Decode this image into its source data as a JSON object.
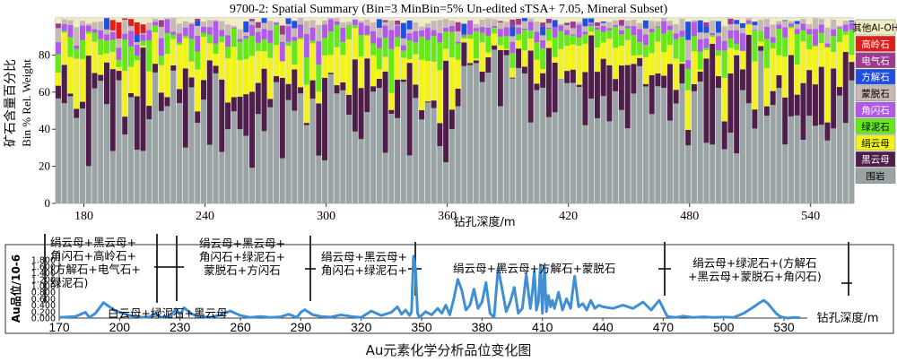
{
  "top_chart_data": {
    "type": "bar",
    "stacked": true,
    "title": "9700-2: Spatial Summary (Bin=3 MinBin=5% Un-edited sTSA+ 7.05, Mineral Subset)",
    "ylabel_cn": "矿石含量百分比",
    "ylabel_en": "Bin % Rel. Weight",
    "xlabel": "钻孔深度/m",
    "xlim": [
      166,
      561
    ],
    "ylim": [
      0,
      100
    ],
    "x_ticks": [
      180,
      240,
      300,
      360,
      420,
      480,
      540
    ],
    "y_ticks": [
      0,
      20,
      40,
      60,
      80
    ],
    "legend": [
      {
        "name": "其他Al-OH",
        "color": "#f2edc0"
      },
      {
        "name": "高岭石",
        "color": "#e21b1b"
      },
      {
        "name": "电气石",
        "color": "#9d3b8f"
      },
      {
        "name": "方解石",
        "color": "#1f4fe0"
      },
      {
        "name": "蒙脱石",
        "color": "#c8b8b4"
      },
      {
        "name": "角闪石",
        "color": "#b15ae8"
      },
      {
        "name": "绿泥石",
        "color": "#66e81a"
      },
      {
        "name": "绢云母",
        "color": "#f2f21d"
      },
      {
        "name": "黑云母",
        "color": "#4e1d4a"
      },
      {
        "name": "围岩",
        "color": "#9aa4a4"
      }
    ]
  },
  "zones": [
    {
      "lines": [
        "绢云母+黑云母+",
        "角闪石+高岭石+",
        "(方解石+电气石+",
        "绿泥石)"
      ]
    },
    {
      "lines": [
        "绢云母+黑云母+",
        "角闪石+绿泥石+",
        "蒙脱石+方闪石"
      ]
    },
    {
      "lines": [
        "绢云母+黑云母+",
        "角闪石+绿泥石+"
      ]
    },
    {
      "lines": [
        "绢云母+黑云母+方解石+蒙脱石"
      ]
    },
    {
      "lines": [
        "绢云母+绿泥石+(方解石",
        "+黑云母+蒙脱石+角闪石)"
      ]
    }
  ],
  "zone_note": "白云母+绿泥石+黑云母",
  "chart_data": {
    "type": "line",
    "ylabel": "Au品位/10-6",
    "xlabel": "钻孔深度/m",
    "xlim": [
      170,
      538
    ],
    "ylim": [
      0,
      2.0
    ],
    "x_ticks": [
      170,
      200,
      230,
      260,
      290,
      320,
      350,
      380,
      410,
      440,
      470,
      500,
      530
    ],
    "y_ticks": [
      "0.000",
      "0.200",
      "0.400",
      "0.600",
      "0.800",
      "1.000",
      "1.200",
      "1.400",
      "1.600",
      "1.800"
    ],
    "line_color": "#3f8fd2",
    "x": [
      170,
      178,
      183,
      185,
      188,
      192,
      198,
      205,
      210,
      215,
      218,
      220,
      225,
      228,
      230,
      232,
      236,
      240,
      245,
      250,
      255,
      260,
      265,
      270,
      275,
      280,
      284,
      288,
      290,
      292,
      296,
      300,
      305,
      310,
      315,
      320,
      325,
      330,
      335,
      338,
      340,
      342,
      344,
      345,
      346,
      347,
      348,
      349,
      350,
      352,
      355,
      358,
      360,
      362,
      364,
      366,
      368,
      370,
      372,
      374,
      376,
      378,
      380,
      382,
      384,
      386,
      388,
      390,
      392,
      394,
      396,
      398,
      400,
      402,
      404,
      405,
      406,
      407,
      408,
      409,
      410,
      411,
      412,
      413,
      414,
      415,
      416,
      418,
      420,
      422,
      424,
      426,
      428,
      430,
      432,
      434,
      436,
      438,
      440,
      445,
      450,
      455,
      460,
      464,
      468,
      470,
      472,
      476,
      480,
      485,
      490,
      495,
      500,
      505,
      510,
      515,
      518,
      520,
      522,
      524,
      526,
      528,
      530,
      532,
      535,
      538
    ],
    "y": [
      0.02,
      0.05,
      0.18,
      0.02,
      0.15,
      0.48,
      0.22,
      0.08,
      0.02,
      0.04,
      0.15,
      0.02,
      0.06,
      0.28,
      0.1,
      0.32,
      0.12,
      0.05,
      0.02,
      0.1,
      0.22,
      0.08,
      0.02,
      0.05,
      0.02,
      0.04,
      0.12,
      0.02,
      0.18,
      0.26,
      0.1,
      0.05,
      0.03,
      0.1,
      0.05,
      0.02,
      0.22,
      0.08,
      0.18,
      0.35,
      0.12,
      0.25,
      0.08,
      0.2,
      1.92,
      1.5,
      0.15,
      0.02,
      0.08,
      0.2,
      0.1,
      0.3,
      0.15,
      0.4,
      0.1,
      0.6,
      1.2,
      0.85,
      0.25,
      0.4,
      0.9,
      0.3,
      0.5,
      1.1,
      0.15,
      0.02,
      1.55,
      0.9,
      0.2,
      0.5,
      0.95,
      0.15,
      0.3,
      1.35,
      0.3,
      0.8,
      1.45,
      0.25,
      0.5,
      1.65,
      0.15,
      1.6,
      0.2,
      0.7,
      0.35,
      0.55,
      0.3,
      0.8,
      0.25,
      0.6,
      0.3,
      1.3,
      0.35,
      0.45,
      0.25,
      0.55,
      0.3,
      0.4,
      0.35,
      0.3,
      0.4,
      0.3,
      0.5,
      0.25,
      0.55,
      0.3,
      0.05,
      0.02,
      0.06,
      0.02,
      0.04,
      0.02,
      0.03,
      0.02,
      0.15,
      0.35,
      0.48,
      0.55,
      0.45,
      0.3,
      0.15,
      0.05,
      0.02,
      0.0,
      0.02,
      0.01
    ]
  },
  "caption": "Au元素化学分析品位变化图"
}
